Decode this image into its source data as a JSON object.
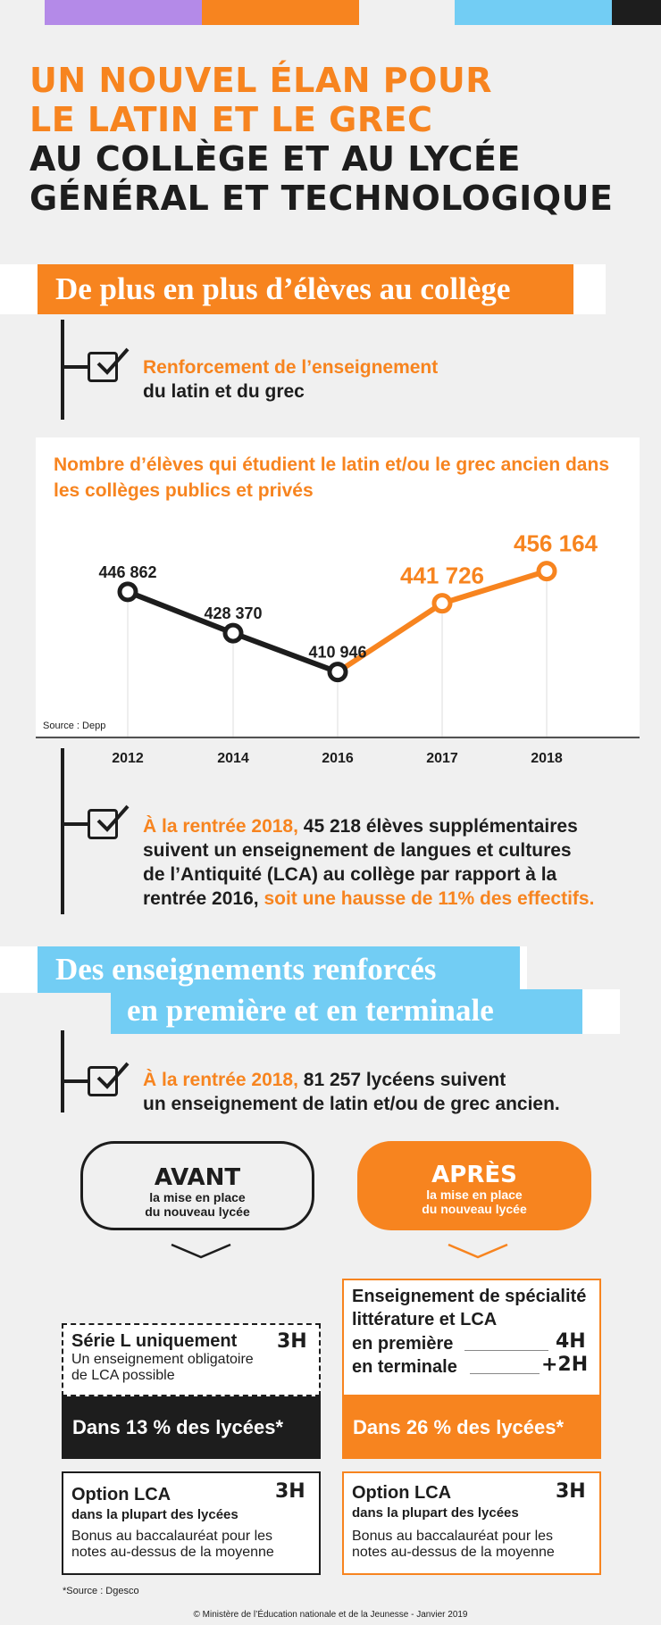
{
  "title": {
    "line1": "UN NOUVEL ÉLAN POUR",
    "line2": "LE LATIN ET LE GREC",
    "line3": "AU COLLÈGE ET AU LYCÉE",
    "line4": "GÉNÉRAL ET TECHNOLOGIQUE"
  },
  "colors": {
    "orange": "#f7841f",
    "blue": "#72cdf4",
    "purple": "#b48ae8",
    "dark": "#1d1d1d"
  },
  "section1": {
    "heading": "De plus en plus d’élèves au collège",
    "point1_highlight": "Renforcement de l’enseignement",
    "point1_rest": "du latin et du grec"
  },
  "chart_data": {
    "type": "line",
    "title": "Nombre d’élèves qui étudient le latin et/ou le grec ancien dans les collèges publics et privés",
    "source": "Source : Depp",
    "categories": [
      "2012",
      "2014",
      "2016",
      "2017",
      "2018"
    ],
    "series": [
      {
        "values": [
          446862,
          428370,
          410946,
          null,
          null
        ],
        "color": "#1d1d1d"
      },
      {
        "values": [
          null,
          null,
          410946,
          441726,
          456164
        ],
        "color": "#f7841f"
      }
    ],
    "labels": [
      "446 862",
      "428 370",
      "410 946",
      "441 726",
      "456 164"
    ],
    "grid": false
  },
  "section1_point2": {
    "p1": "À la rentrée 2018,",
    "p2": " 45 218 élèves supplémentaires",
    "p3": "suivent un enseignement de langues et cultures",
    "p4": "de l’Antiquité (LCA) au collège par rapport à la",
    "p5": "rentrée 2016, ",
    "p6": "soit une hausse de 11% des effectifs."
  },
  "section2": {
    "heading_line1": "Des enseignements renforcés",
    "heading_line2": "en première et en terminale",
    "p1": "À la rentrée 2018,",
    "p2": " 81 257 lycéens suivent",
    "p3": "un enseignement de latin et/ou de grec ancien."
  },
  "avant": {
    "title": "AVANT",
    "sub1": "la mise en place",
    "sub2": "du nouveau lycée",
    "box_title": "Série L uniquement",
    "box_hours": "3H",
    "box_sub1": "Un enseignement obligatoire",
    "box_sub2": "de LCA possible",
    "band": "Dans 13 % des lycées*",
    "opt_title": "Option LCA",
    "opt_hours": "3H",
    "opt_sub": "dans la plupart des lycées",
    "opt_desc1": "Bonus au baccalauréat pour les",
    "opt_desc2": "notes au-dessus de la moyenne"
  },
  "apres": {
    "title": "APRÈS",
    "sub1": "la mise en place",
    "sub2": "du nouveau lycée",
    "box_line1": "Enseignement de spécialité",
    "box_line2": "littérature et LCA",
    "row1_label": "en première",
    "row1_hours": "4H",
    "row2_label": "en terminale",
    "row2_hours": "+2H",
    "band": "Dans 26 % des lycées*",
    "opt_title": "Option LCA",
    "opt_hours": "3H",
    "opt_sub": "dans la plupart des lycées",
    "opt_desc1": "Bonus au baccalauréat pour les",
    "opt_desc2": "notes au-dessus de la moyenne"
  },
  "footer": {
    "source": "*Source : Dgesco",
    "copyright": "© Ministère de l’Éducation nationale et de la Jeunesse - Janvier 2019"
  }
}
